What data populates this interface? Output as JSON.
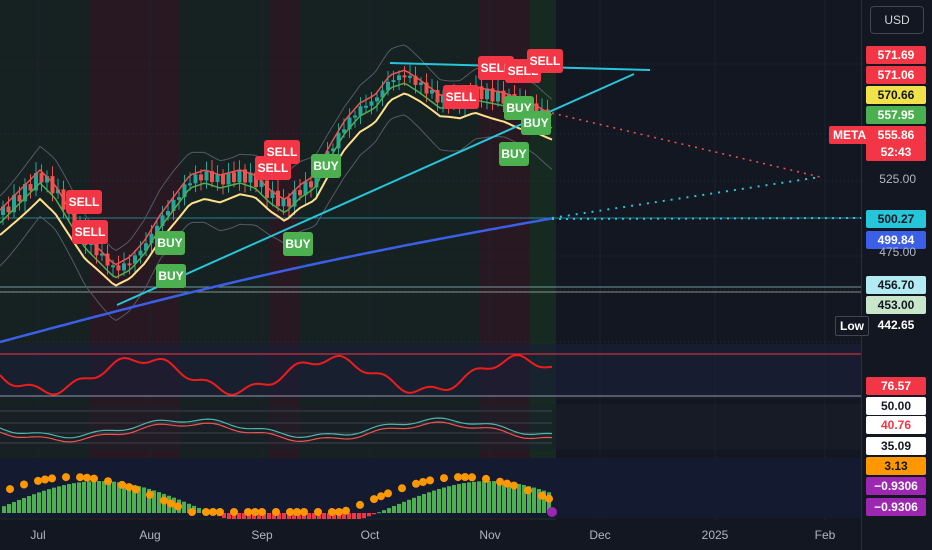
{
  "header": {
    "currency": "USD"
  },
  "symbol": "META",
  "chart_data": {
    "type": "line",
    "title": "",
    "x_ticks": [
      "Jul",
      "Aug",
      "Sep",
      "Oct",
      "Nov",
      "Dec",
      "2025",
      "Feb"
    ],
    "y_ticks": [
      525.0,
      475.0
    ],
    "ylim": [
      440,
      585
    ],
    "price_labels": [
      {
        "text": "571.69",
        "bg": "#f23645",
        "fg": "#ffffff"
      },
      {
        "text": "571.06",
        "bg": "#f23645",
        "fg": "#ffffff"
      },
      {
        "text": "570.66",
        "bg": "#f2e24a",
        "fg": "#131722"
      },
      {
        "text": "557.95",
        "bg": "#4caf50",
        "fg": "#ffffff"
      },
      {
        "text": "555.86",
        "bg": "#f23645",
        "fg": "#ffffff"
      },
      {
        "text": "52:43",
        "bg": "#f23645",
        "fg": "#ffffff"
      },
      {
        "text": "500.27",
        "bg": "#26c6da",
        "fg": "#131722"
      },
      {
        "text": "499.84",
        "bg": "#3c5fe8",
        "fg": "#ffffff"
      },
      {
        "text": "456.70",
        "bg": "#b2ebf2",
        "fg": "#131722"
      },
      {
        "text": "453.00",
        "bg": "#c8e6c9",
        "fg": "#131722"
      },
      {
        "text": "442.65",
        "bg": "#131722",
        "fg": "#ffffff"
      }
    ],
    "symbol_tag": "META",
    "low_tag": "Low",
    "signals": [
      {
        "label": "SELL",
        "kind": "sell",
        "x": 84,
        "y": 202
      },
      {
        "label": "SELL",
        "kind": "sell",
        "x": 90,
        "y": 232
      },
      {
        "label": "BUY",
        "kind": "buy",
        "x": 170,
        "y": 243
      },
      {
        "label": "BUY",
        "kind": "buy",
        "x": 171,
        "y": 276
      },
      {
        "label": "SELL",
        "kind": "sell",
        "x": 282,
        "y": 152
      },
      {
        "label": "SELL",
        "kind": "sell",
        "x": 273,
        "y": 168
      },
      {
        "label": "BUY",
        "kind": "buy",
        "x": 298,
        "y": 244
      },
      {
        "label": "BUY",
        "kind": "buy",
        "x": 326,
        "y": 166
      },
      {
        "label": "SELL",
        "kind": "sell",
        "x": 496,
        "y": 68
      },
      {
        "label": "SELL",
        "kind": "sell",
        "x": 461,
        "y": 97
      },
      {
        "label": "SELL",
        "kind": "sell",
        "x": 523,
        "y": 71
      },
      {
        "label": "SELL",
        "kind": "sell",
        "x": 545,
        "y": 61
      },
      {
        "label": "BUY",
        "kind": "buy",
        "x": 519,
        "y": 108
      },
      {
        "label": "BUY",
        "kind": "buy",
        "x": 536,
        "y": 123
      },
      {
        "label": "BUY",
        "kind": "buy",
        "x": 514,
        "y": 154
      }
    ],
    "rsi_labels": [
      {
        "text": "76.57",
        "bg": "#f23645",
        "fg": "#ffffff"
      },
      {
        "text": "50.00",
        "bg": "#ffffff",
        "fg": "#131722"
      }
    ],
    "osc_labels": [
      {
        "text": "40.76",
        "bg": "#ffffff",
        "fg": "#f23645"
      },
      {
        "text": "35.09",
        "bg": "#ffffff",
        "fg": "#131722"
      }
    ],
    "macd_labels": [
      {
        "text": "3.13",
        "bg": "#ff9800",
        "fg": "#131722"
      },
      {
        "text": "−0.9306",
        "bg": "#9c27b0",
        "fg": "#ffffff"
      },
      {
        "text": "−0.9306",
        "bg": "#9c27b0",
        "fg": "#ffffff"
      }
    ]
  }
}
